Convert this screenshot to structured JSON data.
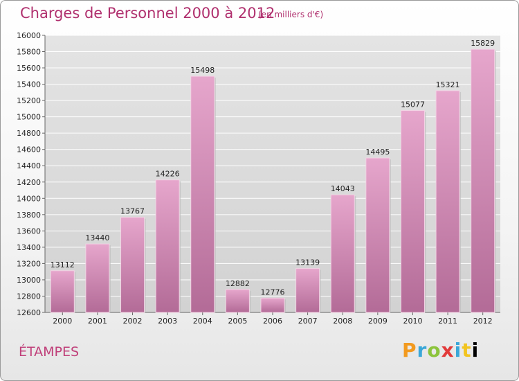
{
  "header": {
    "title": "Charges de Personnel 2000 à 2012",
    "subtitle": "(en milliers d'€)"
  },
  "footer": {
    "city": "ÉTAMPES",
    "logo": "Proxiti",
    "logo_letters": [
      "P",
      "r",
      "o",
      "x",
      "i",
      "t",
      "i"
    ]
  },
  "colors": {
    "bar_top": "#e6a6cc",
    "bar_bottom": "#b36b97",
    "title": "#b0306e"
  },
  "chart_data": {
    "type": "bar",
    "title": "Charges de Personnel 2000 à 2012",
    "subtitle": "(en milliers d'€)",
    "xlabel": "",
    "ylabel": "",
    "categories": [
      "2000",
      "2001",
      "2002",
      "2003",
      "2004",
      "2005",
      "2006",
      "2007",
      "2008",
      "2009",
      "2010",
      "2011",
      "2012"
    ],
    "values": [
      13112,
      13440,
      13767,
      14226,
      15498,
      12882,
      12776,
      13139,
      14043,
      14495,
      15077,
      15321,
      15829
    ],
    "ylim": [
      12600,
      16000
    ],
    "yticks": [
      12600,
      12800,
      13000,
      13200,
      13400,
      13600,
      13800,
      14000,
      14200,
      14400,
      14600,
      14800,
      15000,
      15200,
      15400,
      15600,
      15800,
      16000
    ],
    "grid": true,
    "legend": "none"
  }
}
